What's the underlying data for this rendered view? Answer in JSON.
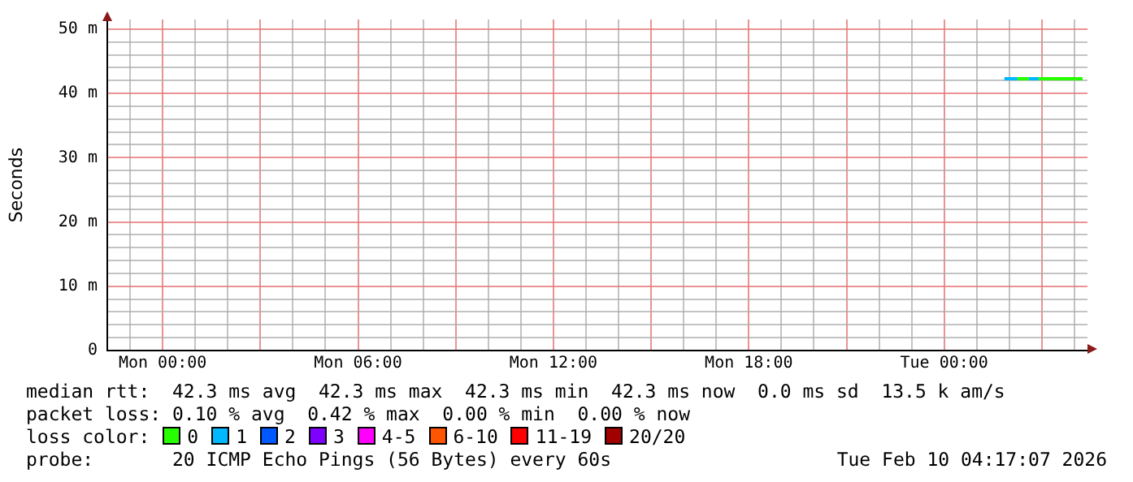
{
  "chart_data": {
    "type": "line",
    "ylabel": "Seconds",
    "legend_title": "loss color:",
    "legend": "bottom",
    "grid": true,
    "marker": "none",
    "line_style": "solid",
    "xlim": [
      "2026-02-08T22:18",
      "2026-02-10T04:24"
    ],
    "xticks": [
      {
        "value": "2026-02-08T23:00",
        "label": null
      },
      {
        "value": "2026-02-09T00:00",
        "label": "Mon 00:00"
      },
      {
        "value": "2026-02-09T01:00",
        "label": null
      },
      {
        "value": "2026-02-09T02:00",
        "label": null
      },
      {
        "value": "2026-02-09T03:00",
        "label": null
      },
      {
        "value": "2026-02-09T04:00",
        "label": null
      },
      {
        "value": "2026-02-09T05:00",
        "label": null
      },
      {
        "value": "2026-02-09T06:00",
        "label": "Mon 06:00"
      },
      {
        "value": "2026-02-09T07:00",
        "label": null
      },
      {
        "value": "2026-02-09T08:00",
        "label": null
      },
      {
        "value": "2026-02-09T09:00",
        "label": null
      },
      {
        "value": "2026-02-09T10:00",
        "label": null
      },
      {
        "value": "2026-02-09T11:00",
        "label": null
      },
      {
        "value": "2026-02-09T12:00",
        "label": "Mon 12:00"
      },
      {
        "value": "2026-02-09T13:00",
        "label": null
      },
      {
        "value": "2026-02-09T14:00",
        "label": null
      },
      {
        "value": "2026-02-09T15:00",
        "label": null
      },
      {
        "value": "2026-02-09T16:00",
        "label": null
      },
      {
        "value": "2026-02-09T17:00",
        "label": null
      },
      {
        "value": "2026-02-09T18:00",
        "label": "Mon 18:00"
      },
      {
        "value": "2026-02-09T19:00",
        "label": null
      },
      {
        "value": "2026-02-09T20:00",
        "label": null
      },
      {
        "value": "2026-02-09T21:00",
        "label": null
      },
      {
        "value": "2026-02-09T22:00",
        "label": null
      },
      {
        "value": "2026-02-09T23:00",
        "label": null
      },
      {
        "value": "2026-02-10T00:00",
        "label": "Tue 00:00"
      },
      {
        "value": "2026-02-10T01:00",
        "label": null
      },
      {
        "value": "2026-02-10T02:00",
        "label": null
      },
      {
        "value": "2026-02-10T03:00",
        "label": null
      },
      {
        "value": "2026-02-10T04:00",
        "label": null
      }
    ],
    "ylim": [
      0,
      51.5
    ],
    "yticks": [
      0,
      {
        "value": 2,
        "label": null
      },
      {
        "value": 4,
        "label": null
      },
      {
        "value": 6,
        "label": null
      },
      {
        "value": 8,
        "label": null
      },
      {
        "value": 10,
        "label": "10 m"
      },
      {
        "value": 12,
        "label": null
      },
      {
        "value": 14,
        "label": null
      },
      {
        "value": 16,
        "label": null
      },
      {
        "value": 18,
        "label": null
      },
      {
        "value": 20,
        "label": "20 m"
      },
      {
        "value": 22,
        "label": null
      },
      {
        "value": 24,
        "label": null
      },
      {
        "value": 26,
        "label": null
      },
      {
        "value": 28,
        "label": null
      },
      {
        "value": 30,
        "label": "30 m"
      },
      {
        "value": 32,
        "label": null
      },
      {
        "value": 34,
        "label": null
      },
      {
        "value": 36,
        "label": null
      },
      {
        "value": 38,
        "label": null
      },
      {
        "value": 40,
        "label": "40 m"
      },
      {
        "value": 42,
        "label": null
      },
      {
        "value": 44,
        "label": null
      },
      {
        "value": 46,
        "label": null
      },
      {
        "value": 48,
        "label": null
      },
      {
        "value": 50,
        "label": "50 m"
      }
    ],
    "series": [
      {
        "name": "0",
        "color": "#26ff00",
        "x": [
          "2026-02-10T02:15",
          "2026-02-10T02:36",
          "2026-02-10T02:45",
          "2026-02-10T02:54",
          "2026-02-10T04:15"
        ],
        "values": [
          42.3,
          42.3,
          null,
          42.3,
          42.3
        ]
      },
      {
        "name": "1",
        "color": "#00b8ff",
        "x": [
          "2026-02-10T01:51",
          "2026-02-10T02:15",
          "2026-02-10T02:27",
          "2026-02-10T02:36",
          "2026-02-10T02:54"
        ],
        "values": [
          42.3,
          42.3,
          null,
          42.3,
          42.3
        ]
      },
      {
        "name": "2",
        "color": "#0059ff"
      },
      {
        "name": "3",
        "color": "#7e00ff"
      },
      {
        "name": "4-5",
        "color": "#ff00ff"
      },
      {
        "name": "6-10",
        "color": "#ff5500"
      },
      {
        "name": "11-19",
        "color": "#ff0000"
      },
      {
        "name": "20/20",
        "color": "#a10000"
      }
    ],
    "annotations": [
      "median rtt:  42.3 ms avg  42.3 ms max  42.3 ms min  42.3 ms now  0.0 ms sd  13.5 k am/s",
      "packet loss: 0.10 % avg  0.42 % max  0.00 % min  0.00 % now",
      "probe:       20 ICMP Echo Pings (56 Bytes) every 60s",
      "Tue Feb 10 04:17:07 2026"
    ]
  }
}
